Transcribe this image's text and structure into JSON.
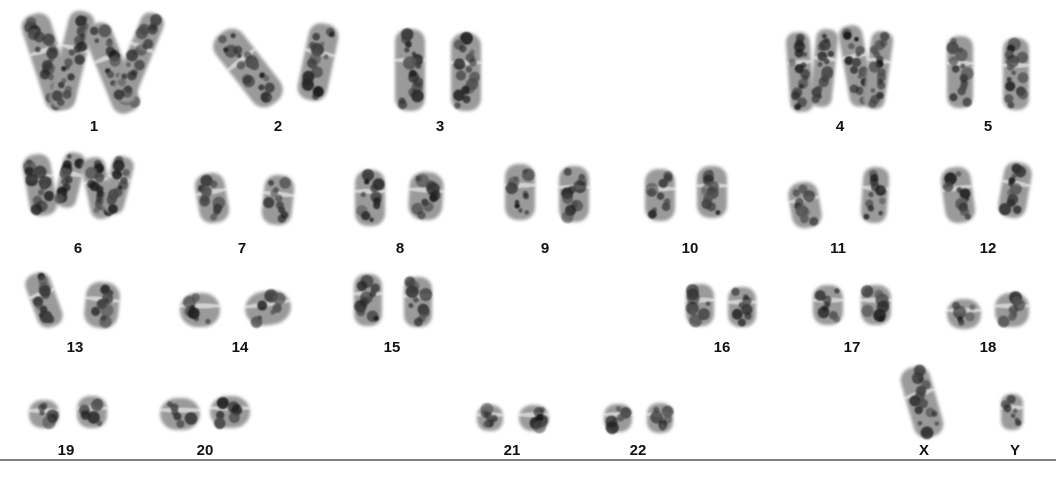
{
  "karyotype": {
    "pairs": [
      {
        "label": "1"
      },
      {
        "label": "2"
      },
      {
        "label": "3"
      },
      {
        "label": "4"
      },
      {
        "label": "5"
      },
      {
        "label": "6"
      },
      {
        "label": "7"
      },
      {
        "label": "8"
      },
      {
        "label": "9"
      },
      {
        "label": "10"
      },
      {
        "label": "11"
      },
      {
        "label": "12"
      },
      {
        "label": "13"
      },
      {
        "label": "14"
      },
      {
        "label": "15"
      },
      {
        "label": "16"
      },
      {
        "label": "17"
      },
      {
        "label": "18"
      },
      {
        "label": "19"
      },
      {
        "label": "20"
      },
      {
        "label": "21"
      },
      {
        "label": "22"
      },
      {
        "label": "X"
      },
      {
        "label": "Y"
      }
    ]
  }
}
